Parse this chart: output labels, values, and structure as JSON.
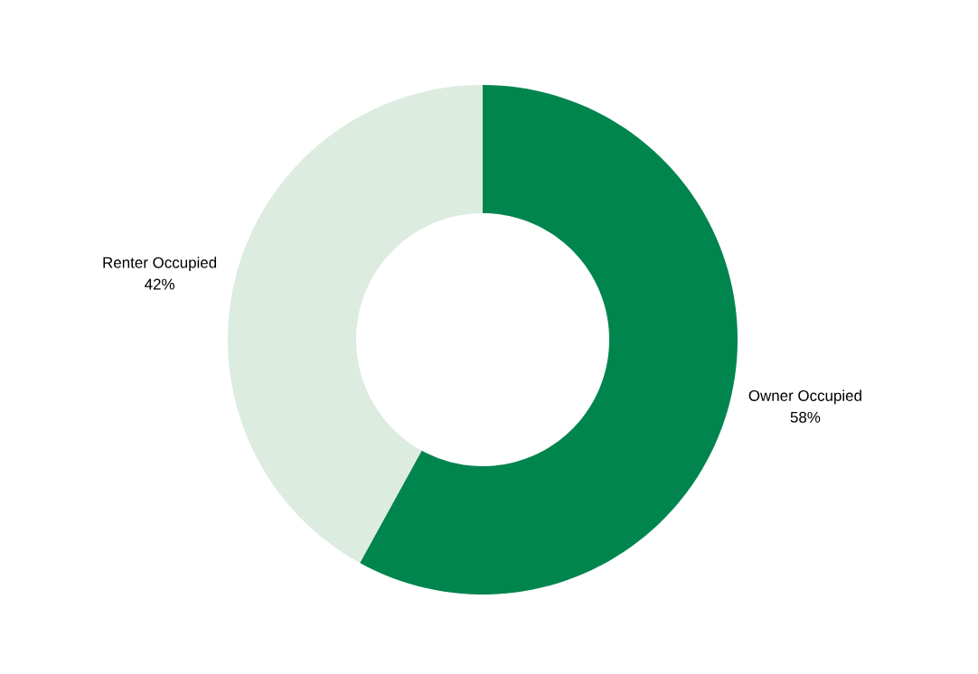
{
  "chart_data": {
    "type": "donut",
    "categories": [
      "Owner Occupied",
      "Renter Occupied"
    ],
    "values": [
      58,
      42
    ],
    "value_labels": [
      "58%",
      "42%"
    ],
    "colors": [
      "#00854f",
      "#dcece0"
    ]
  }
}
